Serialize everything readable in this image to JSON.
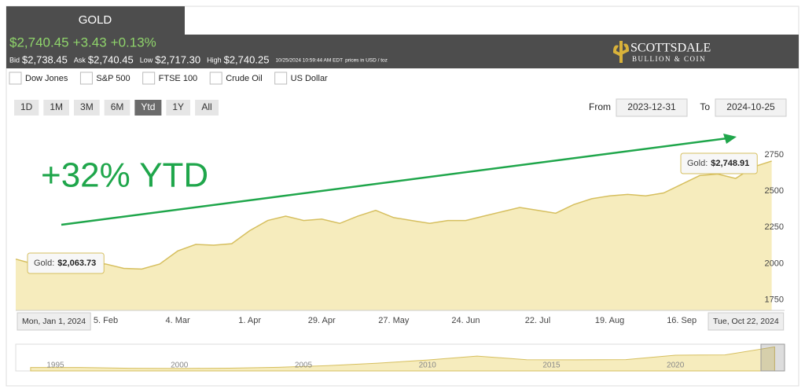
{
  "tab": "GOLD",
  "quote": {
    "price": "$2,740.45",
    "change": "+3.43",
    "change_pct": "+0.13%",
    "bid_label": "Bid",
    "bid": "$2,738.45",
    "ask_label": "Ask",
    "ask": "$2,740.45",
    "low_label": "Low",
    "low": "$2,717.30",
    "high_label": "High",
    "high": "$2,740.25",
    "timestamp": "10/25/2024 10:59:44 AM EDT",
    "units": "prices in USD / toz"
  },
  "logo": {
    "name": "SCOTTSDALE",
    "sub": "BULLION & COIN"
  },
  "compare": [
    "Dow Jones",
    "S&P 500",
    "FTSE 100",
    "Crude Oil",
    "US Dollar"
  ],
  "ranges": [
    "1D",
    "1M",
    "3M",
    "6M",
    "Ytd",
    "1Y",
    "All"
  ],
  "selected_range": 4,
  "from_label": "From",
  "from": "2023-12-31",
  "to_label": "To",
  "to": "2024-10-25",
  "chart_data": {
    "type": "area",
    "annotation": "+32% YTD",
    "x": [
      0,
      7,
      14,
      21,
      28,
      35,
      42,
      49,
      56,
      63,
      70,
      77,
      84,
      91,
      98,
      105,
      112,
      119,
      126,
      133,
      140,
      147,
      154,
      161,
      168,
      175,
      182,
      189,
      196,
      203,
      210,
      217,
      224,
      231,
      238,
      245,
      252,
      259,
      266,
      273,
      280,
      287,
      294
    ],
    "series": [
      {
        "name": "Gold",
        "color": "#d6bf5f",
        "fill": "#f6ecbd",
        "values": [
          2064,
          2030,
          2025,
          2020,
          2040,
          2030,
          2000,
          1995,
          2030,
          2120,
          2165,
          2160,
          2170,
          2260,
          2330,
          2360,
          2330,
          2340,
          2310,
          2360,
          2400,
          2350,
          2330,
          2310,
          2330,
          2330,
          2360,
          2390,
          2420,
          2400,
          2380,
          2440,
          2480,
          2500,
          2510,
          2500,
          2520,
          2580,
          2640,
          2650,
          2620,
          2700,
          2740
        ]
      }
    ],
    "xlim": [
      0,
      299
    ],
    "xticks": [
      {
        "value": 35,
        "label": "5. Feb"
      },
      {
        "value": 63,
        "label": "4. Mar"
      },
      {
        "value": 91,
        "label": "1. Apr"
      },
      {
        "value": 119,
        "label": "29. Apr"
      },
      {
        "value": 147,
        "label": "27. May"
      },
      {
        "value": 175,
        "label": "24. Jun"
      },
      {
        "value": 203,
        "label": "22. Jul"
      },
      {
        "value": 231,
        "label": "19. Aug"
      },
      {
        "value": 259,
        "label": "16. Sep"
      }
    ],
    "ylim": [
      1710,
      2940
    ],
    "yticks": [
      1750,
      2000,
      2250,
      2500,
      2750
    ],
    "tooltips": [
      {
        "label": "Gold:",
        "value": "$2,063.73",
        "date": "Mon, Jan 1, 2024"
      },
      {
        "label": "Gold:",
        "value": "$2,748.91",
        "date": "Tue, Oct 22, 2024"
      }
    ]
  },
  "navigator": {
    "x": [
      1994,
      1996,
      1998,
      2000,
      2002,
      2004,
      2006,
      2008,
      2010,
      2012,
      2014,
      2016,
      2018,
      2020,
      2022,
      2024
    ],
    "values": [
      385,
      390,
      295,
      280,
      310,
      410,
      600,
      870,
      1220,
      1670,
      1260,
      1250,
      1270,
      1770,
      1800,
      2700
    ],
    "xlim": [
      1993.4,
      2024.4
    ],
    "xticks": [
      1995,
      2000,
      2005,
      2010,
      2015,
      2020
    ],
    "ylim": [
      0,
      3000
    ]
  }
}
